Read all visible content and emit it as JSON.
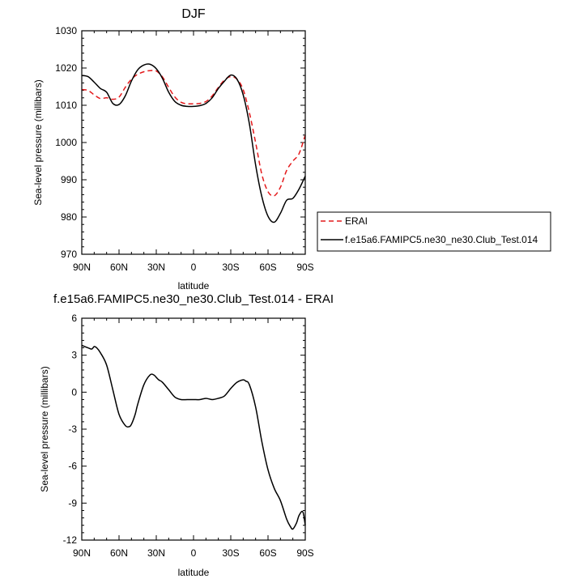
{
  "chart_data": [
    {
      "type": "line",
      "title": "DJF",
      "xlabel": "latitude",
      "ylabel": "Sea-level pressure (millibars)",
      "xlim": [
        90,
        -90
      ],
      "ylim": [
        970,
        1030
      ],
      "x_ticks": [
        {
          "value": 90,
          "label": "90N"
        },
        {
          "value": 60,
          "label": "60N"
        },
        {
          "value": 30,
          "label": "30N"
        },
        {
          "value": 0,
          "label": "0"
        },
        {
          "value": -30,
          "label": "30S"
        },
        {
          "value": -60,
          "label": "60S"
        },
        {
          "value": -90,
          "label": "90S"
        }
      ],
      "y_ticks": [
        {
          "value": 1030,
          "label": "1030"
        },
        {
          "value": 1020,
          "label": "1020"
        },
        {
          "value": 1010,
          "label": "1010"
        },
        {
          "value": 1000,
          "label": "1000"
        },
        {
          "value": 990,
          "label": "990"
        },
        {
          "value": 980,
          "label": "980"
        },
        {
          "value": 970,
          "label": "970"
        }
      ],
      "legend_position": "outside-right",
      "series": [
        {
          "name": "ERAI",
          "color": "#e41a1c",
          "dash": "dashed",
          "x": [
            90,
            85,
            80,
            75,
            70,
            65,
            60,
            55,
            50,
            45,
            40,
            35,
            30,
            25,
            20,
            15,
            10,
            5,
            0,
            -5,
            -10,
            -15,
            -20,
            -25,
            -30,
            -35,
            -40,
            -45,
            -50,
            -55,
            -60,
            -65,
            -70,
            -75,
            -80,
            -85,
            -90
          ],
          "y": [
            1014.2,
            1014.0,
            1012.8,
            1011.8,
            1012.0,
            1011.6,
            1012.2,
            1014.8,
            1017.0,
            1018.3,
            1019.0,
            1019.3,
            1019.2,
            1017.6,
            1014.8,
            1012.2,
            1010.8,
            1010.4,
            1010.4,
            1010.5,
            1011.0,
            1012.5,
            1014.8,
            1016.8,
            1017.7,
            1017.0,
            1014.2,
            1008.0,
            1000.0,
            991.5,
            986.8,
            985.7,
            988.0,
            992.5,
            995.0,
            997.0,
            1002.0
          ]
        },
        {
          "name": "f.e15a6.FAMIPC5.ne30_ne30.Club_Test.014",
          "color": "#000000",
          "dash": "solid",
          "x": [
            90,
            85,
            80,
            75,
            70,
            65,
            60,
            55,
            50,
            45,
            40,
            35,
            30,
            25,
            20,
            15,
            10,
            5,
            0,
            -5,
            -10,
            -15,
            -20,
            -25,
            -30,
            -35,
            -40,
            -45,
            -50,
            -55,
            -60,
            -65,
            -70,
            -75,
            -80,
            -85,
            -90
          ],
          "y": [
            1018.0,
            1017.7,
            1016.2,
            1014.5,
            1013.5,
            1010.5,
            1010.2,
            1012.5,
            1016.5,
            1019.5,
            1020.8,
            1021.0,
            1019.8,
            1017.2,
            1013.5,
            1011.0,
            1010.0,
            1009.7,
            1009.7,
            1009.9,
            1010.5,
            1012.0,
            1014.5,
            1016.5,
            1018.1,
            1017.0,
            1012.8,
            1005.0,
            994.0,
            985.5,
            980.2,
            978.6,
            981.0,
            984.5,
            985.0,
            987.5,
            991.0
          ]
        }
      ]
    },
    {
      "type": "line",
      "title": "f.e15a6.FAMIPC5.ne30_ne30.Club_Test.014 - ERAI",
      "xlabel": "latitude",
      "ylabel": "Sea-level pressure (millibars)",
      "xlim": [
        90,
        -90
      ],
      "ylim": [
        -12,
        6
      ],
      "x_ticks": [
        {
          "value": 90,
          "label": "90N"
        },
        {
          "value": 60,
          "label": "60N"
        },
        {
          "value": 30,
          "label": "30N"
        },
        {
          "value": 0,
          "label": "0"
        },
        {
          "value": -30,
          "label": "30S"
        },
        {
          "value": -60,
          "label": "60S"
        },
        {
          "value": -90,
          "label": "90S"
        }
      ],
      "y_ticks": [
        {
          "value": 6,
          "label": "6"
        },
        {
          "value": 3,
          "label": "3"
        },
        {
          "value": 0,
          "label": "0"
        },
        {
          "value": -3,
          "label": "-3"
        },
        {
          "value": -6,
          "label": "-6"
        },
        {
          "value": -9,
          "label": "-9"
        },
        {
          "value": -12,
          "label": "-12"
        }
      ],
      "series": [
        {
          "name": "",
          "color": "#000000",
          "dash": "solid",
          "x": [
            90,
            85,
            82,
            80,
            78,
            75,
            70,
            65,
            60,
            55,
            52,
            50,
            47,
            45,
            40,
            35,
            32,
            30,
            28,
            25,
            20,
            15,
            10,
            5,
            0,
            -5,
            -10,
            -15,
            -20,
            -25,
            -30,
            -35,
            -40,
            -42,
            -45,
            -50,
            -55,
            -60,
            -65,
            -70,
            -75,
            -78,
            -80,
            -83,
            -85,
            -88,
            -90
          ],
          "y": [
            3.8,
            3.6,
            3.5,
            3.7,
            3.6,
            3.2,
            2.2,
            0.2,
            -1.8,
            -2.7,
            -2.8,
            -2.6,
            -1.8,
            -1.0,
            0.6,
            1.4,
            1.4,
            1.2,
            1.0,
            0.8,
            0.2,
            -0.4,
            -0.6,
            -0.6,
            -0.6,
            -0.6,
            -0.5,
            -0.6,
            -0.5,
            -0.3,
            0.3,
            0.8,
            1.0,
            0.9,
            0.6,
            -1.2,
            -4.0,
            -6.3,
            -7.8,
            -8.8,
            -10.3,
            -10.9,
            -11.1,
            -10.6,
            -10.0,
            -9.7,
            -10.8
          ]
        }
      ]
    }
  ]
}
